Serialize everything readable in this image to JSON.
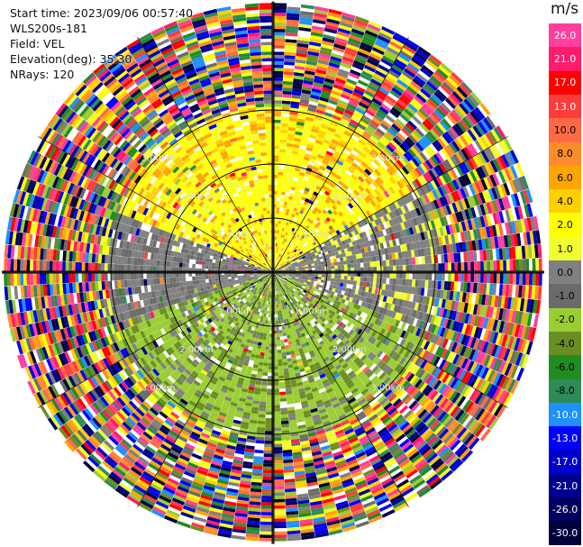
{
  "header": {
    "start_time": "Start time: 2023/09/06 00:57:40",
    "instrument": "WLS200s-181",
    "field": "Field: VEL",
    "elevation": "Elevation(deg): 35.30",
    "nrays": "NRays: 120"
  },
  "colorbar": {
    "unit": "m/s",
    "entries": [
      {
        "label": "26.0",
        "color": "#ff3ea0"
      },
      {
        "label": "21.0",
        "color": "#ff1b6b"
      },
      {
        "label": "17.0",
        "color": "#ff0000"
      },
      {
        "label": "13.0",
        "color": "#ff3c3c"
      },
      {
        "label": "10.0",
        "color": "#ff6a45"
      },
      {
        "label": "8.0",
        "color": "#ff8c2a"
      },
      {
        "label": "6.0",
        "color": "#ffa500"
      },
      {
        "label": "4.0",
        "color": "#ffd000"
      },
      {
        "label": "2.0",
        "color": "#ffff00"
      },
      {
        "label": "1.0",
        "color": "#f0ff30"
      },
      {
        "label": "0.0",
        "color": "#808080"
      },
      {
        "label": "-1.0",
        "color": "#6b6b6b"
      },
      {
        "label": "-2.0",
        "color": "#9acd32"
      },
      {
        "label": "-4.0",
        "color": "#6b8e23"
      },
      {
        "label": "-6.0",
        "color": "#228b22"
      },
      {
        "label": "-8.0",
        "color": "#2e8b57"
      },
      {
        "label": "-10.0",
        "color": "#1e90ff"
      },
      {
        "label": "-13.0",
        "color": "#0000ff"
      },
      {
        "label": "-17.0",
        "color": "#0000cd"
      },
      {
        "label": "-21.0",
        "color": "#000090"
      },
      {
        "label": "-26.0",
        "color": "#000060"
      },
      {
        "label": "-30.0",
        "color": "#00003a"
      }
    ]
  },
  "chart_data": {
    "type": "heatmap",
    "projection": "polar PPI",
    "field": "VEL",
    "units": "m/s",
    "nrays": 120,
    "range_rings": [
      {
        "label": "1.00km",
        "radius_km": 1.0
      },
      {
        "label": "2.00km",
        "radius_km": 2.0
      },
      {
        "label": "3.00km",
        "radius_km": 3.0
      }
    ],
    "max_range_km": 5.0,
    "spoke_count": 12,
    "legend_placement": "right"
  }
}
